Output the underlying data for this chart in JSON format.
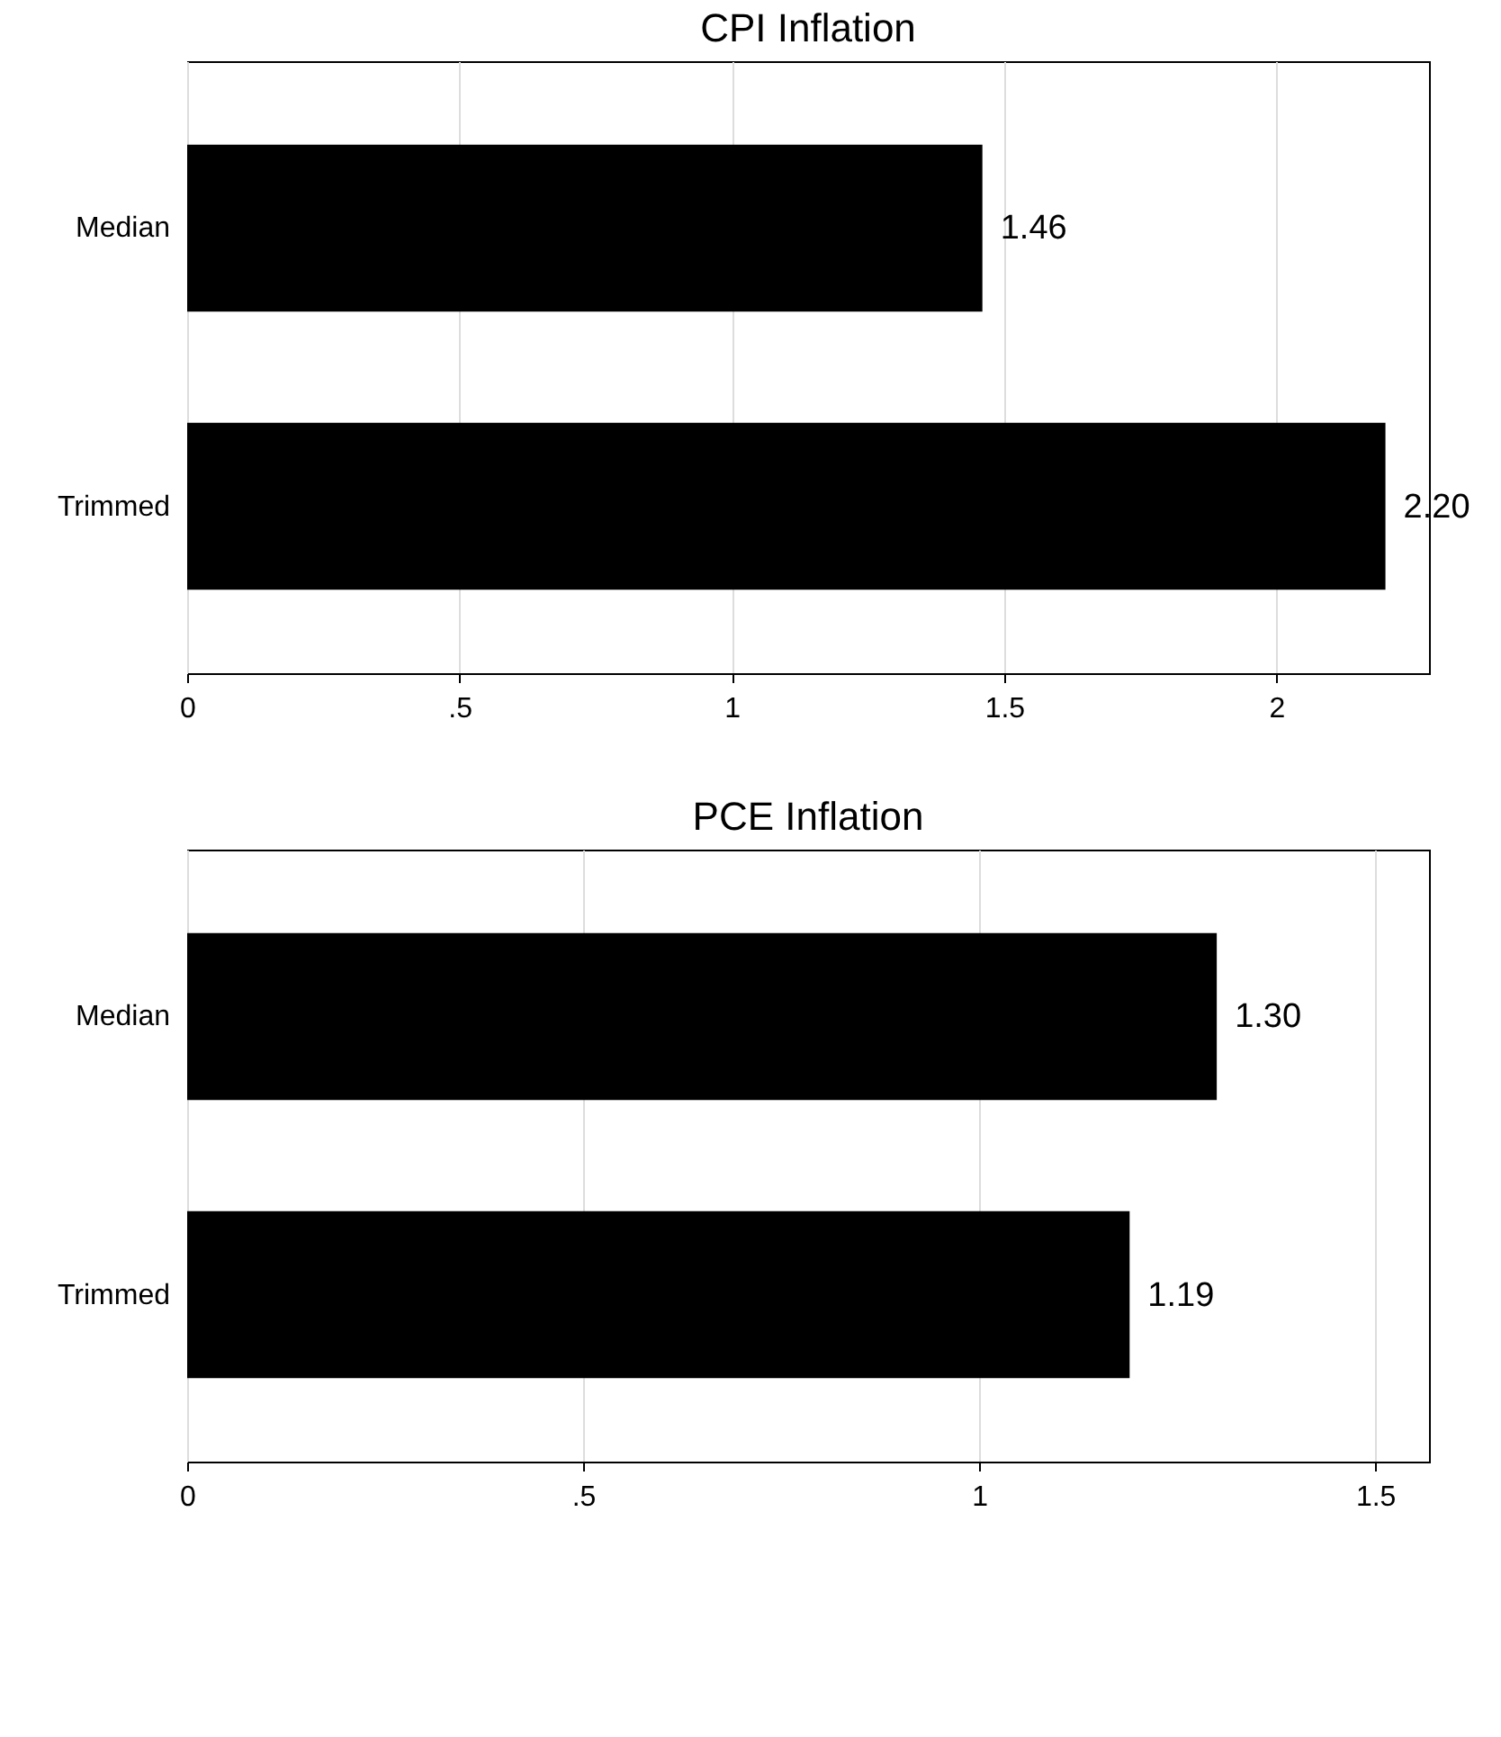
{
  "chart_data": [
    {
      "type": "bar",
      "orientation": "horizontal",
      "title": "CPI Inflation",
      "categories": [
        "Median",
        "Trimmed"
      ],
      "values": [
        1.46,
        2.2
      ],
      "value_labels": [
        "1.46",
        "2.20"
      ],
      "color": "#000000",
      "xlim": [
        0,
        2.28
      ],
      "xticks": [
        0,
        {
          "value": 0.5,
          "label": ".5"
        },
        1,
        1.5,
        2
      ],
      "grid": "x"
    },
    {
      "type": "bar",
      "orientation": "horizontal",
      "title": "PCE Inflation",
      "categories": [
        "Median",
        "Trimmed"
      ],
      "values": [
        1.3,
        1.19
      ],
      "value_labels": [
        "1.30",
        "1.19"
      ],
      "color": "#000000",
      "xlim": [
        0,
        1.568
      ],
      "xticks": [
        0,
        {
          "value": 0.5,
          "label": ".5"
        },
        1,
        1.5
      ],
      "grid": "x"
    }
  ]
}
